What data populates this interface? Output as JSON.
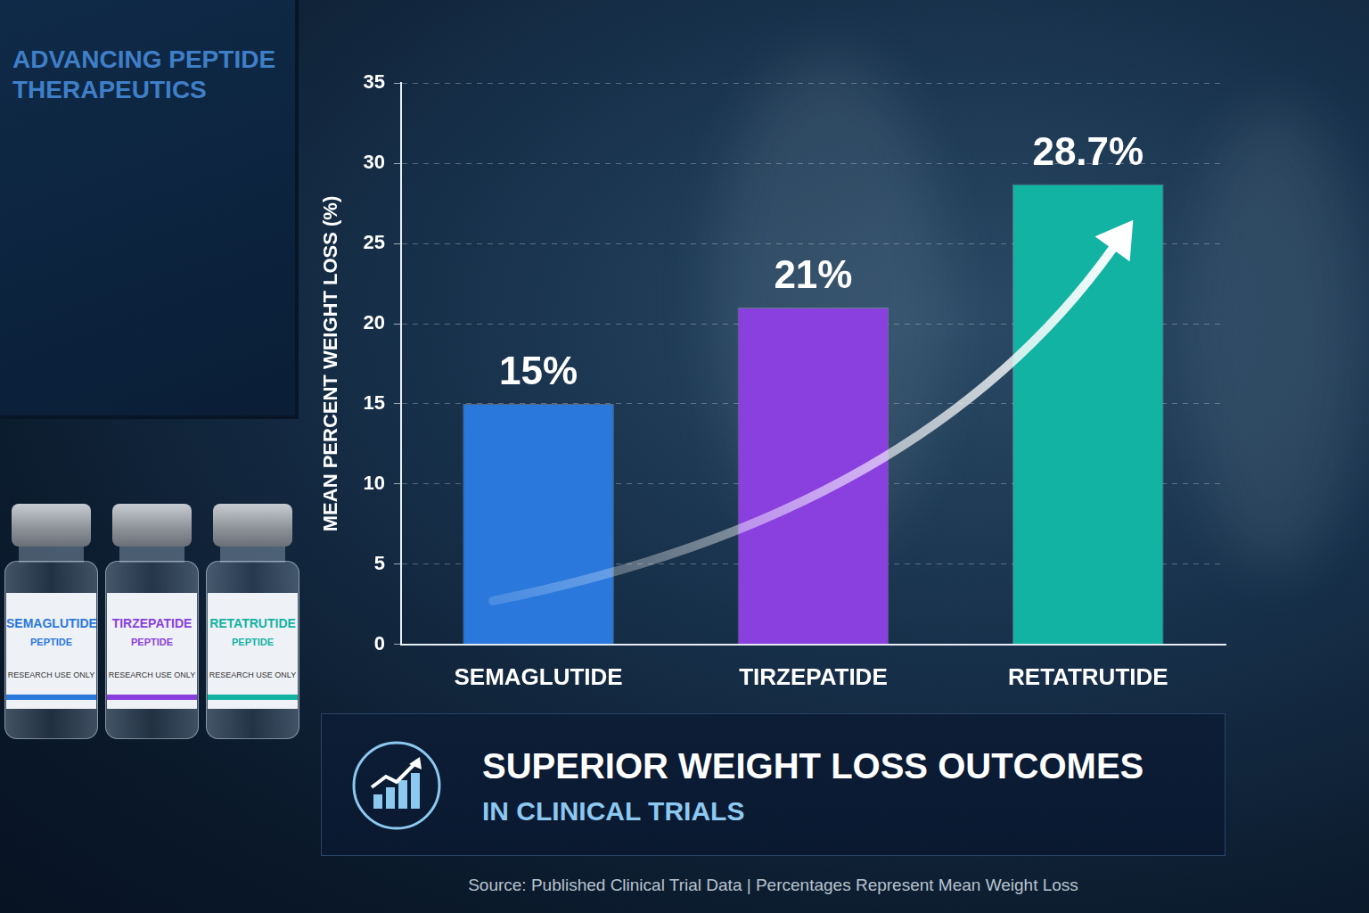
{
  "chart_data": {
    "type": "bar",
    "title": "SUPERIOR WEIGHT LOSS OUTCOMES",
    "subtitle": "IN CLINICAL TRIALS",
    "y_label": "MEAN PERCENT WEIGHT LOSS (%)",
    "categories": [
      "SEMAGLUTIDE",
      "TIRZEPATIDE",
      "RETATRUTIDE"
    ],
    "values": [
      15,
      21,
      28.7
    ],
    "value_labels": [
      "15%",
      "21%",
      "28.7%"
    ],
    "colors": [
      "#2a78dc",
      "#8a3fdf",
      "#13b3a4"
    ],
    "ylim": [
      0,
      35
    ],
    "yticks": [
      0,
      5,
      10,
      15,
      20,
      25,
      30,
      35
    ],
    "grid": true,
    "data_labels": true,
    "source": "Source: Published Clinical Trial Data  |  Percentages Represent Mean Weight Loss"
  },
  "background": {
    "monitor_title": "ADVANCING PEPTIDE THERAPEUTICS",
    "vials": [
      {
        "name": "SEMAGLUTIDE",
        "kind": "PEPTIDE",
        "note": "RESEARCH USE ONLY"
      },
      {
        "name": "TIRZEPATIDE",
        "kind": "PEPTIDE",
        "note": "RESEARCH USE ONLY"
      },
      {
        "name": "RETATRUTIDE",
        "kind": "PEPTIDE",
        "note": "RESEARCH USE ONLY"
      }
    ]
  }
}
